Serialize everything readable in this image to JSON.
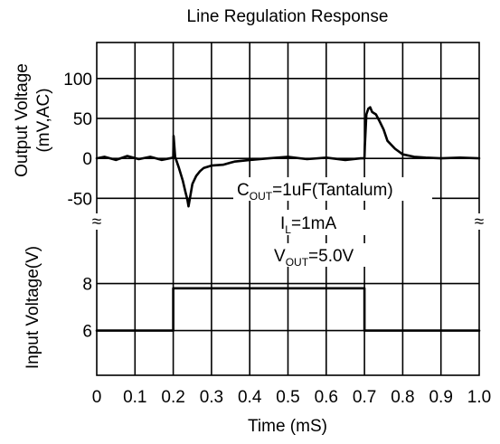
{
  "chart_data": {
    "type": "line",
    "title": "Line Regulation Response",
    "xlabel": "Time (mS)",
    "x_ticks": [
      "0",
      "0.1",
      "0.2",
      "0.3",
      "0.4",
      "0.5",
      "0.6",
      "0.7",
      "0.8",
      "0.9",
      "1.0"
    ],
    "xlim": [
      0,
      1.0
    ],
    "grid": true,
    "break_symbol": "≈",
    "panels": [
      {
        "name": "output",
        "ylabel_lines": [
          "Output Voltage",
          "(mV,AC)"
        ],
        "ylim": [
          -70,
          145
        ],
        "y_ticks": [
          {
            "label": "100",
            "value": 100
          },
          {
            "label": "50",
            "value": 50
          },
          {
            "label": "0",
            "value": 0
          },
          {
            "label": "-50",
            "value": -50
          }
        ],
        "series": [
          {
            "x": [
              0,
              0.02,
              0.05,
              0.08,
              0.11,
              0.14,
              0.17,
              0.2,
              0.201,
              0.205,
              0.215,
              0.225,
              0.232,
              0.237,
              0.24,
              0.25,
              0.26,
              0.27,
              0.28,
              0.3,
              0.33,
              0.36,
              0.4,
              0.45,
              0.5,
              0.55,
              0.6,
              0.65,
              0.69,
              0.7,
              0.701,
              0.705,
              0.71,
              0.715,
              0.72,
              0.73,
              0.74,
              0.75,
              0.76,
              0.78,
              0.8,
              0.83,
              0.86,
              0.9,
              0.95,
              1.0
            ],
            "y": [
              0,
              2,
              -2,
              3,
              -1,
              2,
              -2,
              1,
              28,
              2,
              -12,
              -28,
              -42,
              -52,
              -60,
              -32,
              -22,
              -16,
              -12,
              -9,
              -8,
              -4,
              -2,
              0,
              2,
              -1,
              1,
              -2,
              0,
              0,
              15,
              55,
              62,
              64,
              58,
              55,
              46,
              36,
              22,
              12,
              5,
              2,
              1,
              0,
              1,
              0
            ]
          }
        ]
      },
      {
        "name": "input",
        "ylabel_lines": [
          "Input Voltage(V)"
        ],
        "ylim": [
          4.1,
          9.6
        ],
        "y_ticks": [
          {
            "label": "8",
            "value": 8
          },
          {
            "label": "6",
            "value": 6
          }
        ],
        "series": [
          {
            "x": [
              0,
              0.2,
              0.2,
              0.7,
              0.7,
              1.0
            ],
            "y": [
              6,
              6,
              7.8,
              7.8,
              6,
              6
            ]
          }
        ]
      }
    ],
    "annotations": [
      {
        "text": "C",
        "sub": "OUT",
        "rest": "=1uF(Tantalum)"
      },
      {
        "text": "I",
        "sub": "L",
        "rest": "=1mA"
      },
      {
        "text": "V",
        "sub": "OUT",
        "rest": "=5.0V"
      }
    ]
  }
}
